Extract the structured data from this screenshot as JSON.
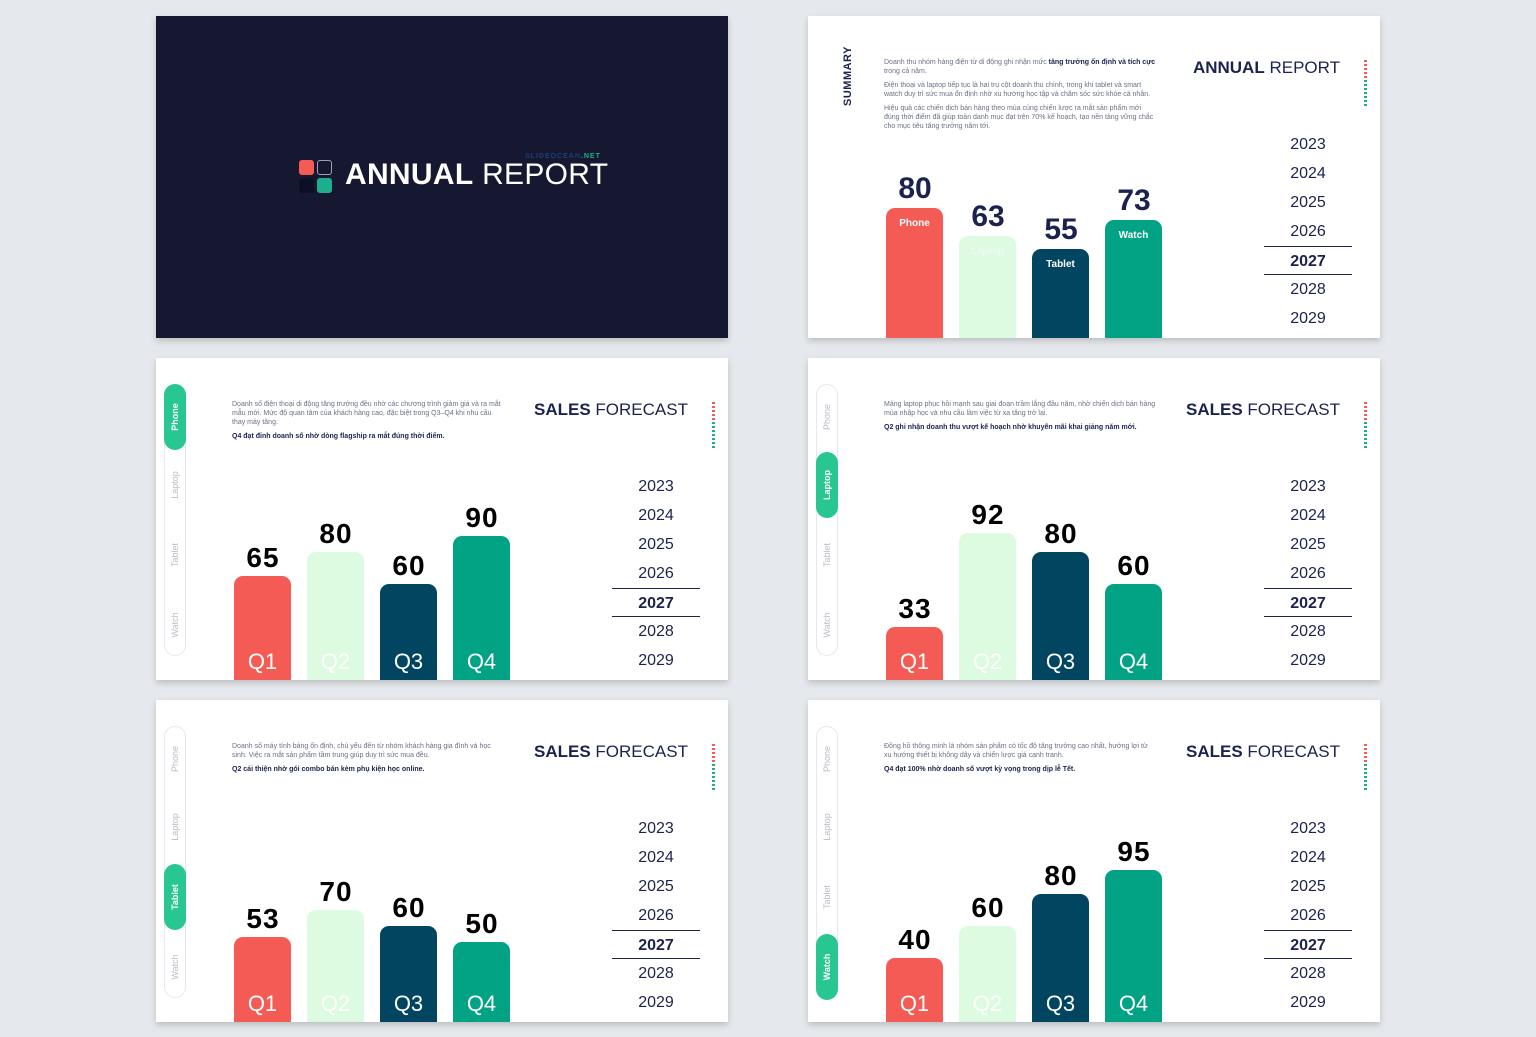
{
  "colors": {
    "red": "#f45b55",
    "mint": "#dcfbe0",
    "navy": "#014560",
    "teal": "#02a384",
    "dark": "#161731",
    "text": "#1c2250"
  },
  "cover": {
    "title_bold": "ANNUAL",
    "title_light": " REPORT",
    "brand_a": "SLIDEOCEAN",
    "brand_b": ".NET"
  },
  "years": [
    "2023",
    "2024",
    "2025",
    "2026",
    "2027",
    "2028",
    "2029"
  ],
  "active_year": "2027",
  "summary": {
    "side_label": "SUMMARY",
    "title_bold": "ANNUAL",
    "title_light": " REPORT",
    "p1": "Doanh thu nhóm hàng điện tử di động ghi nhận mức ",
    "p1_em": "tăng trưởng ổn định và tích cực",
    "p1_end": " trong cả năm.",
    "p2": "Điện thoại và laptop tiếp tục là hai trụ cột doanh thu chính, trong khi tablet và smart watch duy trì sức mua ổn định nhờ xu hướng học tập và chăm sóc sức khỏe cá nhân.",
    "p3": "Hiệu quả các chiến dịch bán hàng theo mùa cùng chiến lược ra mắt sản phẩm mới đúng thời điểm đã giúp toàn danh mục đạt trên 70% kế hoạch, tạo nền tảng vững chắc cho mục tiêu tăng trưởng năm tới.",
    "bars": [
      {
        "label": "Phone",
        "value": "80"
      },
      {
        "label": "Laptop",
        "value": "63"
      },
      {
        "label": "Tablet",
        "value": "55"
      },
      {
        "label": "Watch",
        "value": "73"
      }
    ]
  },
  "forecasts": [
    {
      "title_bold": "SALES",
      "title_light": " FORECAST",
      "active_tab": "Phone",
      "text": "Doanh số điện thoại di động tăng trưởng đều nhờ các chương trình giảm giá và ra mắt mẫu mới. Mức độ quan tâm của khách hàng cao, đặc biệt trong Q3–Q4 khi nhu cầu thay máy tăng.",
      "highlight": "Q4 đạt đỉnh doanh số nhờ dòng flagship ra mắt đúng thời điểm.",
      "values": [
        "65",
        "80",
        "60",
        "90"
      ]
    },
    {
      "title_bold": "SALES",
      "title_light": " FORECAST",
      "active_tab": "Laptop",
      "text": "Mảng laptop phục hồi mạnh sau giai đoạn trầm lắng đầu năm, nhờ chiến dịch bán hàng mùa nhập học và nhu cầu làm việc từ xa tăng trở lại.",
      "highlight": "Q2 ghi nhận doanh thu vượt kế hoạch nhờ khuyến mãi khai giảng năm mới.",
      "values": [
        "33",
        "92",
        "80",
        "60"
      ]
    },
    {
      "title_bold": "SALES",
      "title_light": " FORECAST",
      "active_tab": "Tablet",
      "text": "Doanh số máy tính bảng ổn định, chủ yếu đến từ nhóm khách hàng gia đình và học sinh. Việc ra mắt sản phẩm tầm trung giúp duy trì sức mua đều.",
      "highlight": "Q2 cải thiện nhờ gói combo bán kèm phụ kiện học online.",
      "values": [
        "53",
        "70",
        "60",
        "50"
      ]
    },
    {
      "title_bold": "SALES",
      "title_light": " FORECAST",
      "active_tab": "Watch",
      "text": "Đồng hồ thông minh là nhóm sản phẩm có tốc độ tăng trưởng cao nhất, hưởng lợi từ xu hướng thiết bị không dây và chiến lược giá cạnh tranh.",
      "highlight": "Q4 đạt 100% nhờ doanh số vượt kỳ vọng trong dịp lễ Tết.",
      "values": [
        "40",
        "60",
        "80",
        "95"
      ]
    }
  ],
  "tabs": [
    "Phone",
    "Laptop",
    "Tablet",
    "Watch"
  ],
  "quarters": [
    "Q1",
    "Q2",
    "Q3",
    "Q4"
  ]
}
